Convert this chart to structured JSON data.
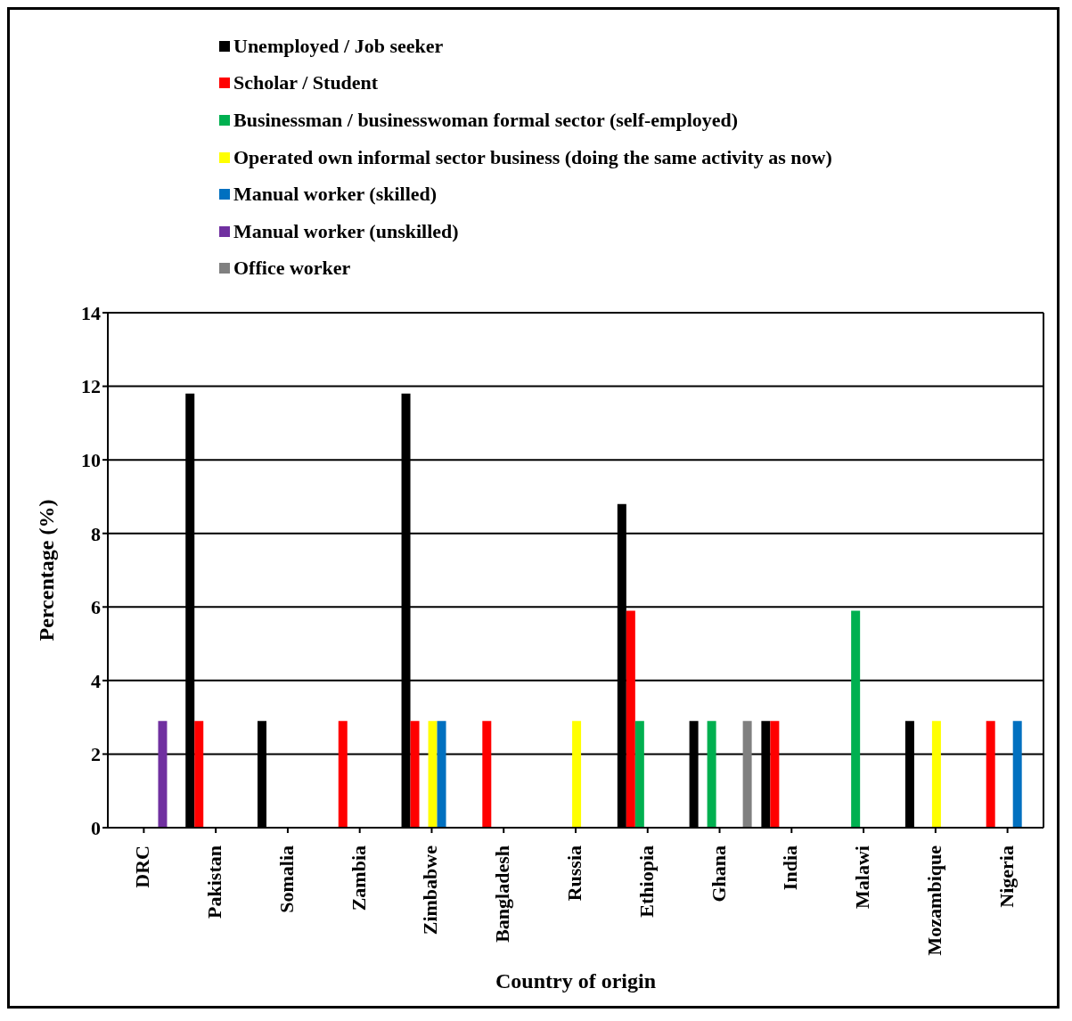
{
  "chart_data": {
    "type": "bar",
    "xlabel": "Country of origin",
    "ylabel": "Percentage (%)",
    "categories": [
      "DRC",
      "Pakistan",
      "Somalia",
      "Zambia",
      "Zimbabwe",
      "Bangladesh",
      "Russia",
      "Ethiopia",
      "Ghana",
      "India",
      "Malawi",
      "Mozambique",
      "Nigeria"
    ],
    "series": [
      {
        "name": "Unemployed / Job seeker",
        "color": "#000000",
        "values": [
          null,
          11.8,
          2.9,
          null,
          11.8,
          null,
          null,
          8.8,
          2.9,
          2.9,
          null,
          2.9,
          null
        ]
      },
      {
        "name": "Scholar / Student",
        "color": "#ff0000",
        "values": [
          null,
          2.9,
          null,
          2.9,
          2.9,
          2.9,
          null,
          5.9,
          null,
          2.9,
          null,
          null,
          2.9
        ]
      },
      {
        "name": "Businessman / businesswoman formal sector (self-employed)",
        "color": "#00b050",
        "values": [
          null,
          null,
          null,
          null,
          null,
          null,
          null,
          2.9,
          2.9,
          null,
          5.9,
          null,
          null
        ]
      },
      {
        "name": "Operated own informal sector business (doing the same activity as now)",
        "color": "#ffff00",
        "values": [
          null,
          null,
          null,
          null,
          2.9,
          null,
          2.9,
          null,
          null,
          null,
          null,
          2.9,
          null
        ]
      },
      {
        "name": "Manual worker (skilled)",
        "color": "#0070c0",
        "values": [
          null,
          null,
          null,
          null,
          2.9,
          null,
          null,
          null,
          null,
          null,
          null,
          null,
          2.9
        ]
      },
      {
        "name": "Manual worker (unskilled)",
        "color": "#7030a0",
        "values": [
          2.9,
          null,
          null,
          null,
          null,
          null,
          null,
          null,
          null,
          null,
          null,
          null,
          null
        ]
      },
      {
        "name": "Office worker",
        "color": "#808080",
        "values": [
          null,
          null,
          null,
          null,
          null,
          null,
          null,
          null,
          2.9,
          null,
          null,
          null,
          null
        ]
      }
    ],
    "ylim": [
      0,
      14
    ],
    "yticks": [
      0,
      2,
      4,
      6,
      8,
      10,
      12,
      14
    ],
    "grid": "y",
    "legend": "top"
  }
}
